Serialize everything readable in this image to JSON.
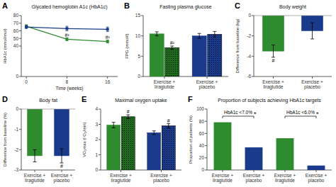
{
  "chart_data": [
    {
      "type": "line",
      "panel": "A",
      "title": "Glycated hemoglobin A1c (HbA1c)",
      "xlabel": "Time (weeks)",
      "ylabel": "HbA1c (mmol/mol)",
      "x": [
        0,
        8,
        16
      ],
      "xlim": [
        -1,
        18
      ],
      "xticks": [
        0,
        8,
        16
      ],
      "ylim": [
        0,
        80
      ],
      "yticks": [
        0,
        40,
        50,
        60,
        70,
        80
      ],
      "series": [
        {
          "color": "#2e8b2e",
          "marker": "square",
          "values": [
            66,
            49,
            46
          ],
          "errors": [
            2,
            2,
            2
          ]
        },
        {
          "color": "#1a3a8c",
          "marker": "square",
          "values": [
            65,
            63,
            62
          ],
          "errors": [
            2,
            3,
            3
          ]
        }
      ],
      "annotations": [
        {
          "x": 8,
          "y": 51,
          "text": "#²"
        },
        {
          "x": 16,
          "y": 48,
          "text": "#²"
        }
      ]
    },
    {
      "type": "bar",
      "panel": "B",
      "title": "Fasting plasma glucose",
      "ylabel": "FPG (mmol/l)",
      "categories": [
        "Exercise +\nliraglutide",
        "Exercise +\nplacebo"
      ],
      "ylim": [
        0,
        15
      ],
      "yticks": [
        0,
        5,
        10,
        15
      ],
      "series": [
        {
          "colors": [
            "#2e8b2e",
            "#1a3a8c"
          ],
          "values": [
            10.5,
            10.0
          ],
          "errors": [
            0.5,
            0.6
          ]
        },
        {
          "colors": [
            "#1e6b1e",
            "#1a3a8c"
          ],
          "values": [
            7.1,
            10.4
          ],
          "errors": [
            0.4,
            0.7
          ],
          "annotations": [
            "#²",
            null
          ]
        }
      ]
    },
    {
      "type": "bar",
      "panel": "C",
      "title": "Body weight",
      "ylabel": "Difference from baseline (kg)",
      "categories": [
        "Exercise +\nliraglutide",
        "Exercise +\nplacebo"
      ],
      "ylim": [
        -6,
        0
      ],
      "yticks": [
        0,
        -2,
        -4,
        -6
      ],
      "series": [
        {
          "colors": [
            "#2e8b2e",
            "#1a3a8c"
          ],
          "values": [
            -3.5,
            -1.5
          ],
          "errors": [
            0.6,
            0.8
          ],
          "annotations": [
            "#",
            null
          ]
        }
      ]
    },
    {
      "type": "bar",
      "panel": "D",
      "title": "Body fat",
      "ylabel": "Difference from baseline (%)",
      "categories": [
        "Exercise +\nliraglutide",
        "Exercise +\nplacebo"
      ],
      "ylim": [
        -3,
        0
      ],
      "yticks": [
        0,
        -1,
        -2,
        -3
      ],
      "series": [
        {
          "colors": [
            "#2e8b2e",
            "#1a3a8c"
          ],
          "values": [
            -2.3,
            -2.3
          ],
          "errors": [
            0.3,
            0.35
          ],
          "annotations": [
            null,
            "#"
          ]
        }
      ]
    },
    {
      "type": "bar",
      "panel": "E",
      "title": "Maximal oxygen uptake",
      "ylabel": "VO₂max (l O₂/min)",
      "categories": [
        "Exercise +\nliraglutide",
        "Exercise +\nplacebo"
      ],
      "ylim": [
        0,
        4
      ],
      "yticks": [
        0,
        1,
        2,
        3,
        4
      ],
      "series": [
        {
          "colors": [
            "#2e8b2e",
            "#1a3a8c"
          ],
          "values": [
            2.95,
            2.45
          ],
          "errors": [
            0.18,
            0.12
          ]
        },
        {
          "colors": [
            "#1e6b1e",
            "#1a3a8c"
          ],
          "values": [
            3.5,
            2.9
          ],
          "errors": [
            0.12,
            0.14
          ],
          "annotations": [
            "#",
            "#"
          ]
        }
      ]
    },
    {
      "type": "bar",
      "panel": "F",
      "title": "Proportion of subjects achieving HbA1c targets",
      "ylabel": "Proportion of patients (%)",
      "categories": [
        "Exercise +\nliraglutide",
        "Exercise +\nplacebo",
        "Exercise +\nliraglutide",
        "Exercise +\nplacebo"
      ],
      "ylim": [
        0,
        100
      ],
      "yticks": [
        0,
        20,
        40,
        60,
        80,
        100
      ],
      "series": [
        {
          "colors": [
            "#2e8b2e",
            "#1a3a8c",
            "#2e8b2e",
            "#1a3a8c"
          ],
          "values": [
            78,
            37,
            52,
            7
          ]
        }
      ],
      "groups": [
        {
          "label": "HbA1c <7.0%",
          "annotation": "*"
        },
        {
          "label": "HbA1c <6.0%",
          "annotation": "*"
        }
      ]
    }
  ]
}
